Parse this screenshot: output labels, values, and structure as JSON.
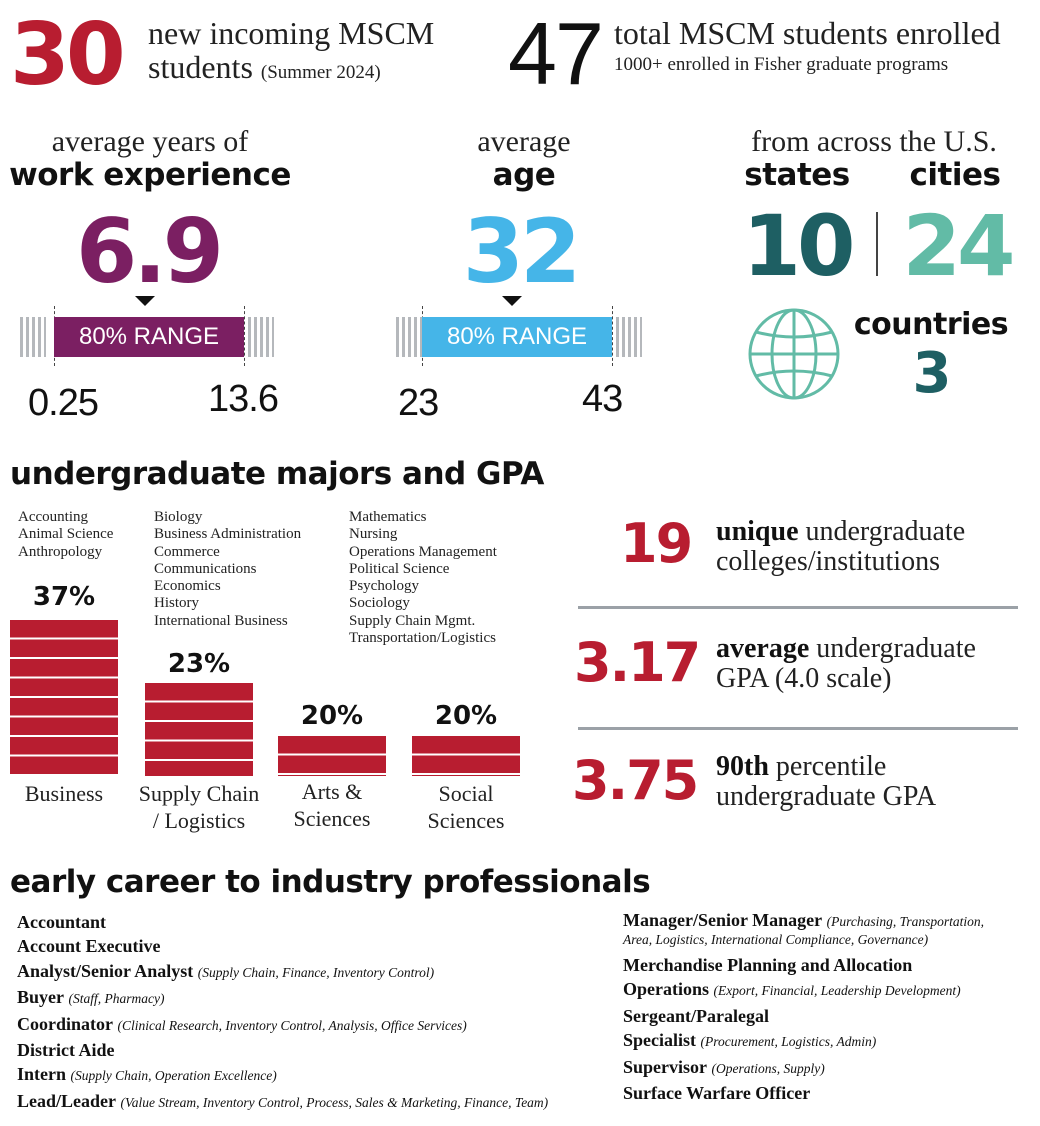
{
  "top": {
    "incoming_num": "30",
    "incoming_line1": "new incoming MSCM",
    "incoming_line2": "students",
    "incoming_note": "(Summer 2024)",
    "total_num": "47",
    "total_line1": "total MSCM students enrolled",
    "total_line2": "1000+ enrolled in Fisher graduate programs"
  },
  "experience": {
    "head1": "average years of",
    "head2": "work experience",
    "value": "6.9",
    "range_label": "80% RANGE",
    "low": "0.25",
    "high": "13.6",
    "color": "#7b1f62"
  },
  "age": {
    "head1": "average",
    "head2": "age",
    "value": "32",
    "range_label": "80% RANGE",
    "low": "23",
    "high": "43",
    "color": "#45b5e8"
  },
  "geo": {
    "head": "from across the U.S.",
    "states_label": "states",
    "cities_label": "cities",
    "states": "10",
    "cities": "24",
    "countries_label": "countries",
    "countries": "3",
    "states_color": "#1e5f63",
    "cities_color": "#62bba6"
  },
  "majors": {
    "title": "undergraduate majors and GPA",
    "col1": [
      "Accounting",
      "Animal Science",
      "Anthropology"
    ],
    "col2": [
      "Biology",
      "Business Administration",
      "Commerce",
      "Communications",
      "Economics",
      "History",
      "International Business"
    ],
    "col3": [
      "Mathematics",
      "Nursing",
      "Operations Management",
      "Political Science",
      "Psychology",
      "Sociology",
      "Supply Chain Mgmt.",
      "Transportation/Logistics"
    ],
    "bars": [
      {
        "pct": "37%",
        "value": 37,
        "label1": "Business",
        "label2": ""
      },
      {
        "pct": "23%",
        "value": 23,
        "label1": "Supply Chain",
        "label2": "/ Logistics"
      },
      {
        "pct": "20%",
        "value": 20,
        "label1": "Arts &",
        "label2": "Sciences"
      },
      {
        "pct": "20%",
        "value": 20,
        "label1": "Social",
        "label2": "Sciences"
      }
    ]
  },
  "gpa": {
    "unique_num": "19",
    "unique_bold": "unique",
    "unique_rest1": " undergraduate",
    "unique_line2": "colleges/institutions",
    "avg_num": "3.17",
    "avg_bold": "average",
    "avg_rest1": " undergraduate",
    "avg_line2": "GPA (4.0 scale)",
    "p90_num": "3.75",
    "p90_bold": "90th",
    "p90_rest1": " percentile",
    "p90_line2": "undergraduate GPA"
  },
  "careers": {
    "title": "early career to industry professionals",
    "left": [
      {
        "title": "Accountant",
        "detail": ""
      },
      {
        "title": "Account Executive",
        "detail": ""
      },
      {
        "title": "Analyst/Senior Analyst",
        "detail": "(Supply Chain, Finance, Inventory Control)"
      },
      {
        "title": "Buyer",
        "detail": "(Staff, Pharmacy)"
      },
      {
        "title": "Coordinator",
        "detail": "(Clinical Research, Inventory Control, Analysis, Office Services)"
      },
      {
        "title": "District Aide",
        "detail": ""
      },
      {
        "title": "Intern",
        "detail": "(Supply Chain, Operation Excellence)"
      },
      {
        "title": "Lead/Leader",
        "detail": "(Value Stream, Inventory Control, Process, Sales & Marketing, Finance, Team)"
      }
    ],
    "right_manager_title": "Manager/Senior Manager",
    "right_manager_detail1": "(Purchasing, Transportation,",
    "right_manager_detail2": "Area, Logistics, International Compliance, Governance)",
    "right": [
      {
        "title": "Merchandise Planning and Allocation",
        "detail": ""
      },
      {
        "title": "Operations",
        "detail": "(Export, Financial, Leadership Development)"
      },
      {
        "title": "Sergeant/Paralegal",
        "detail": ""
      },
      {
        "title": "Specialist",
        "detail": "(Procurement, Logistics, Admin)"
      },
      {
        "title": "Supervisor",
        "detail": "(Operations, Supply)"
      },
      {
        "title": "Surface Warfare Officer",
        "detail": ""
      }
    ]
  }
}
